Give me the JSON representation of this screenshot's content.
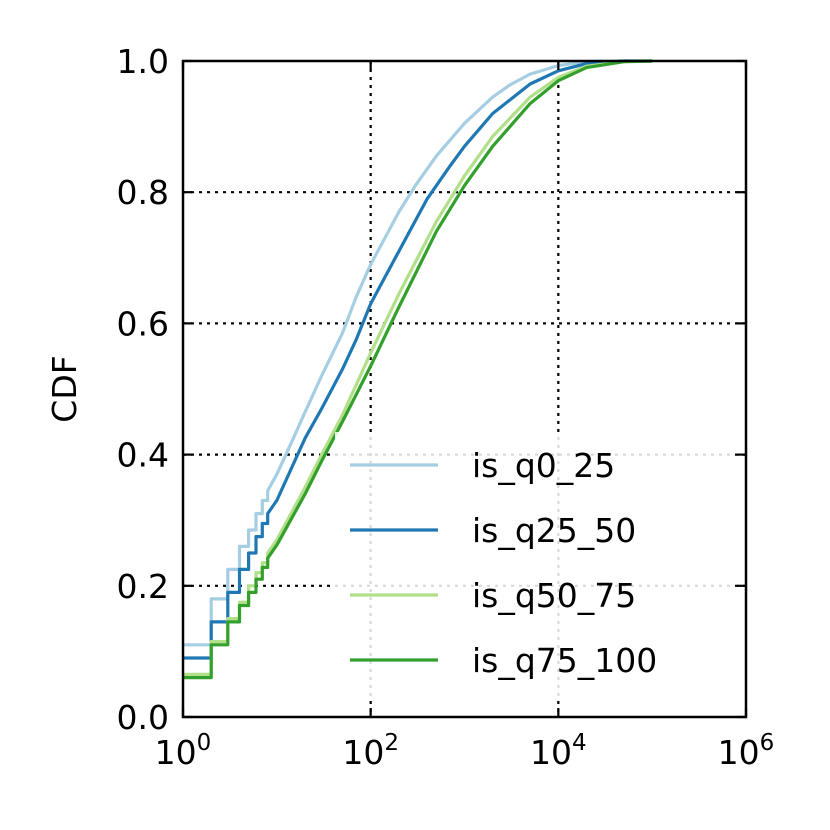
{
  "chart_data": {
    "type": "line",
    "ylabel": "CDF",
    "xlabel": "",
    "xscale": "log",
    "xlim": [
      1,
      1000000
    ],
    "ylim": [
      0.0,
      1.0
    ],
    "grid": true,
    "legend_position": "lower-right",
    "x_ticks": [
      {
        "base": "10",
        "exp": "0"
      },
      {
        "base": "10",
        "exp": "2"
      },
      {
        "base": "10",
        "exp": "4"
      },
      {
        "base": "10",
        "exp": "6"
      }
    ],
    "y_ticks": [
      "0.0",
      "0.2",
      "0.4",
      "0.6",
      "0.8",
      "1.0"
    ],
    "series": [
      {
        "name": "is_q0_25",
        "color": "#a6cee3",
        "points": [
          [
            1,
            0.11
          ],
          [
            2,
            0.11
          ],
          [
            2,
            0.18
          ],
          [
            3,
            0.18
          ],
          [
            3,
            0.225
          ],
          [
            4,
            0.225
          ],
          [
            4,
            0.26
          ],
          [
            5,
            0.26
          ],
          [
            5,
            0.285
          ],
          [
            6,
            0.285
          ],
          [
            6,
            0.31
          ],
          [
            7,
            0.31
          ],
          [
            7,
            0.33
          ],
          [
            8,
            0.33
          ],
          [
            8,
            0.345
          ],
          [
            10,
            0.37
          ],
          [
            15,
            0.425
          ],
          [
            20,
            0.465
          ],
          [
            30,
            0.52
          ],
          [
            50,
            0.585
          ],
          [
            70,
            0.64
          ],
          [
            100,
            0.69
          ],
          [
            200,
            0.77
          ],
          [
            300,
            0.81
          ],
          [
            500,
            0.855
          ],
          [
            1000,
            0.905
          ],
          [
            2000,
            0.945
          ],
          [
            3000,
            0.963
          ],
          [
            5000,
            0.98
          ],
          [
            10000,
            0.993
          ],
          [
            20000,
            0.999
          ],
          [
            50000,
            1.0
          ],
          [
            100000,
            1.0
          ]
        ]
      },
      {
        "name": "is_q25_50",
        "color": "#1f78b4",
        "points": [
          [
            1,
            0.09
          ],
          [
            2,
            0.09
          ],
          [
            2,
            0.145
          ],
          [
            3,
            0.145
          ],
          [
            3,
            0.19
          ],
          [
            4,
            0.19
          ],
          [
            4,
            0.225
          ],
          [
            5,
            0.225
          ],
          [
            5,
            0.25
          ],
          [
            6,
            0.25
          ],
          [
            6,
            0.275
          ],
          [
            7,
            0.275
          ],
          [
            7,
            0.295
          ],
          [
            8,
            0.295
          ],
          [
            8,
            0.31
          ],
          [
            10,
            0.33
          ],
          [
            20,
            0.425
          ],
          [
            30,
            0.47
          ],
          [
            50,
            0.53
          ],
          [
            70,
            0.575
          ],
          [
            100,
            0.63
          ],
          [
            200,
            0.71
          ],
          [
            400,
            0.79
          ],
          [
            700,
            0.84
          ],
          [
            1000,
            0.87
          ],
          [
            2000,
            0.92
          ],
          [
            5000,
            0.965
          ],
          [
            10000,
            0.985
          ],
          [
            20000,
            0.996
          ],
          [
            50000,
            1.0
          ],
          [
            100000,
            1.0
          ]
        ]
      },
      {
        "name": "is_q50_75",
        "color": "#b2df8a",
        "points": [
          [
            1,
            0.065
          ],
          [
            2,
            0.065
          ],
          [
            2,
            0.115
          ],
          [
            3,
            0.115
          ],
          [
            3,
            0.15
          ],
          [
            4,
            0.15
          ],
          [
            4,
            0.175
          ],
          [
            5,
            0.175
          ],
          [
            5,
            0.2
          ],
          [
            6,
            0.2
          ],
          [
            6,
            0.22
          ],
          [
            7,
            0.22
          ],
          [
            7,
            0.235
          ],
          [
            8,
            0.235
          ],
          [
            8,
            0.25
          ],
          [
            10,
            0.27
          ],
          [
            20,
            0.35
          ],
          [
            30,
            0.4
          ],
          [
            50,
            0.46
          ],
          [
            100,
            0.555
          ],
          [
            200,
            0.645
          ],
          [
            500,
            0.755
          ],
          [
            1000,
            0.825
          ],
          [
            2000,
            0.885
          ],
          [
            5000,
            0.945
          ],
          [
            10000,
            0.975
          ],
          [
            20000,
            0.992
          ],
          [
            50000,
            0.999
          ],
          [
            100000,
            1.0
          ]
        ]
      },
      {
        "name": "is_q75_100",
        "color": "#33a02c",
        "points": [
          [
            1,
            0.06
          ],
          [
            2,
            0.06
          ],
          [
            2,
            0.11
          ],
          [
            3,
            0.11
          ],
          [
            3,
            0.145
          ],
          [
            4,
            0.145
          ],
          [
            4,
            0.17
          ],
          [
            5,
            0.17
          ],
          [
            5,
            0.19
          ],
          [
            6,
            0.19
          ],
          [
            6,
            0.21
          ],
          [
            7,
            0.21
          ],
          [
            7,
            0.228
          ],
          [
            8,
            0.228
          ],
          [
            8,
            0.242
          ],
          [
            10,
            0.262
          ],
          [
            20,
            0.34
          ],
          [
            30,
            0.39
          ],
          [
            50,
            0.45
          ],
          [
            100,
            0.535
          ],
          [
            200,
            0.625
          ],
          [
            500,
            0.74
          ],
          [
            1000,
            0.81
          ],
          [
            2000,
            0.87
          ],
          [
            5000,
            0.935
          ],
          [
            10000,
            0.97
          ],
          [
            20000,
            0.99
          ],
          [
            50000,
            0.999
          ],
          [
            100000,
            1.0
          ]
        ]
      }
    ]
  }
}
